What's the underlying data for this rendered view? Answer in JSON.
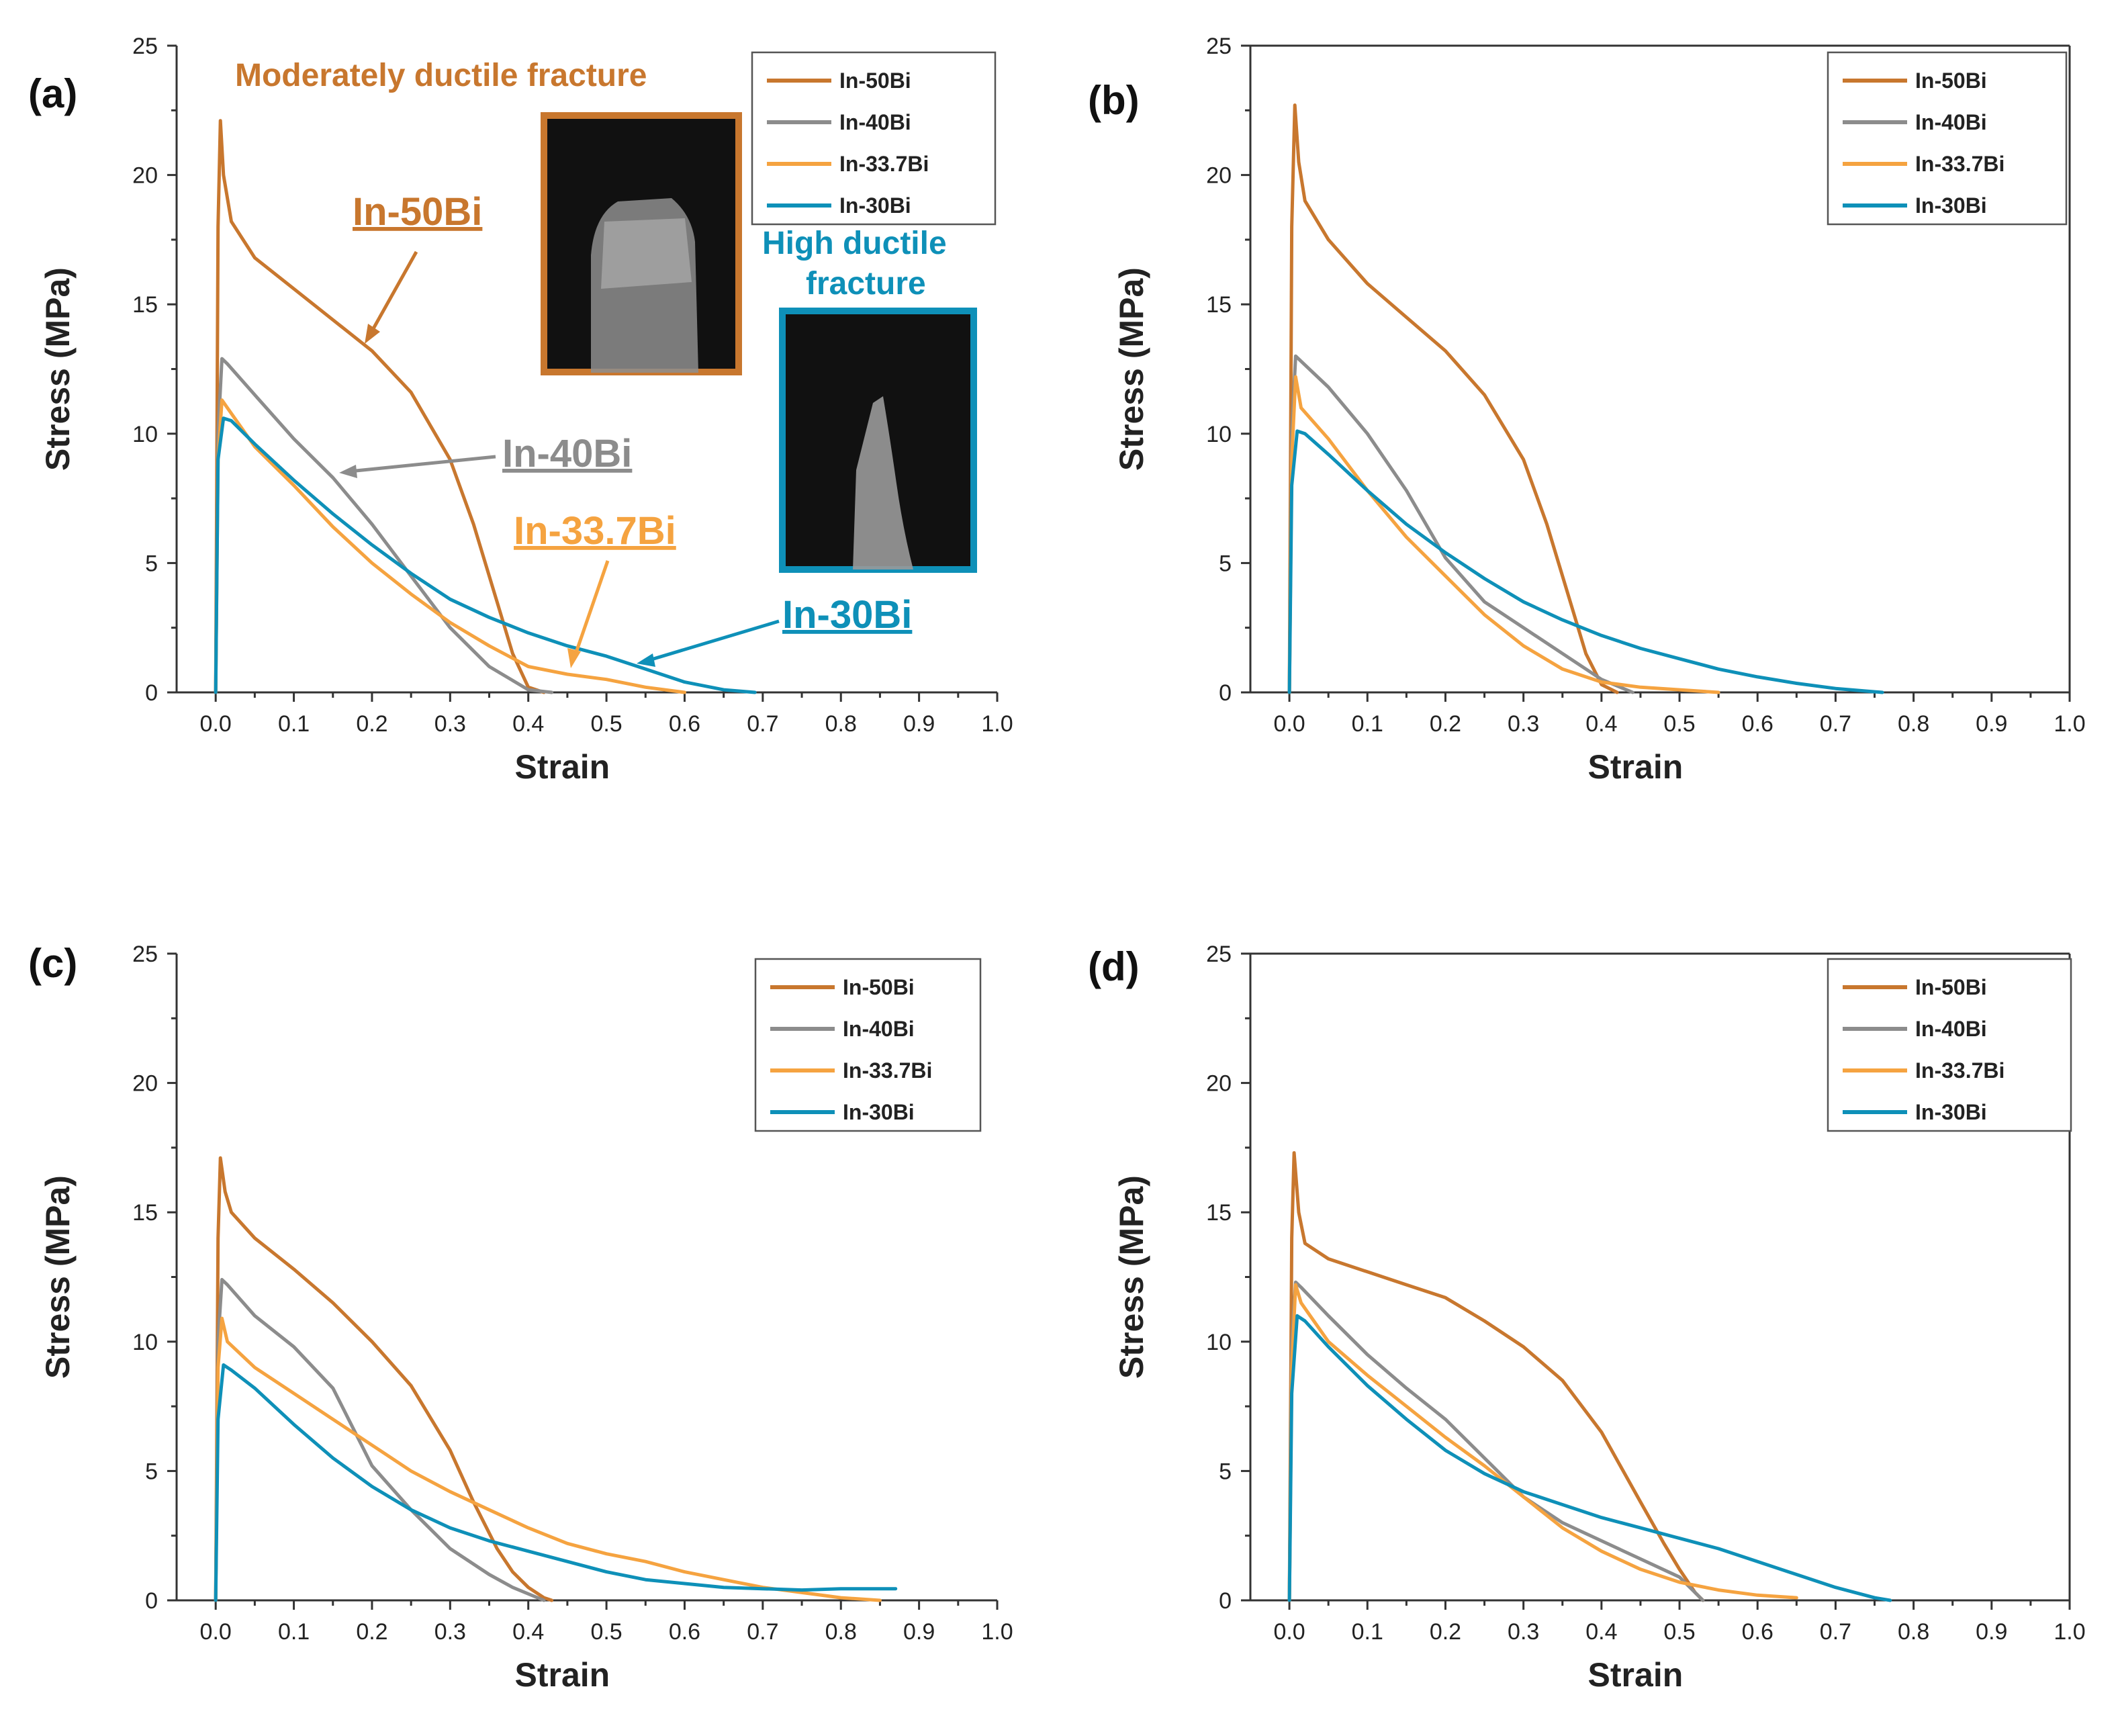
{
  "colors": {
    "In-50Bi": "#c8772e",
    "In-40Bi": "#8c8c8c",
    "In-33.7Bi": "#f5a340",
    "In-30Bi": "#0e90b8"
  },
  "chart_data": [
    {
      "type": "line",
      "panel": "(a)",
      "xlabel": "Strain",
      "ylabel": "Stress (MPa)",
      "xlim": [
        -0.05,
        1.0
      ],
      "ylim": [
        0,
        25
      ],
      "xticks": [
        "0.0",
        "0.1",
        "0.2",
        "0.3",
        "0.4",
        "0.5",
        "0.6",
        "0.7",
        "0.8",
        "0.9",
        "1.0"
      ],
      "yticks": [
        "0",
        "5",
        "10",
        "15",
        "20",
        "25"
      ],
      "legend": [
        "In-50Bi",
        "In-40Bi",
        "In-33.7Bi",
        "In-30Bi"
      ],
      "series": [
        {
          "name": "In-50Bi",
          "x": [
            0,
            0.003,
            0.006,
            0.01,
            0.02,
            0.05,
            0.1,
            0.15,
            0.2,
            0.25,
            0.3,
            0.33,
            0.36,
            0.38,
            0.4,
            0.42
          ],
          "y": [
            0,
            18,
            22.1,
            20,
            18.2,
            16.8,
            15.6,
            14.4,
            13.2,
            11.6,
            9,
            6.5,
            3.5,
            1.5,
            0.2,
            0
          ]
        },
        {
          "name": "In-40Bi",
          "x": [
            0,
            0.003,
            0.008,
            0.015,
            0.05,
            0.1,
            0.15,
            0.2,
            0.25,
            0.3,
            0.35,
            0.4,
            0.43
          ],
          "y": [
            0,
            10,
            12.9,
            12.7,
            11.5,
            9.8,
            8.3,
            6.5,
            4.5,
            2.5,
            1,
            0.1,
            0
          ]
        },
        {
          "name": "In-33.7Bi",
          "x": [
            0,
            0.003,
            0.008,
            0.015,
            0.05,
            0.1,
            0.15,
            0.2,
            0.25,
            0.3,
            0.35,
            0.4,
            0.45,
            0.5,
            0.55,
            0.6
          ],
          "y": [
            0,
            9,
            11.3,
            11,
            9.5,
            8,
            6.4,
            5,
            3.8,
            2.7,
            1.8,
            1,
            0.7,
            0.5,
            0.2,
            0
          ]
        },
        {
          "name": "In-30Bi",
          "x": [
            0,
            0.003,
            0.01,
            0.02,
            0.05,
            0.1,
            0.15,
            0.2,
            0.25,
            0.3,
            0.35,
            0.4,
            0.45,
            0.5,
            0.55,
            0.6,
            0.65,
            0.69
          ],
          "y": [
            0,
            9,
            10.6,
            10.5,
            9.6,
            8.2,
            6.9,
            5.7,
            4.6,
            3.6,
            2.9,
            2.3,
            1.8,
            1.4,
            0.9,
            0.4,
            0.1,
            0
          ]
        }
      ],
      "annotations": [
        {
          "text": "Moderately ductile fracture",
          "color": "#c8772e"
        },
        {
          "text": "High ductile fracture",
          "color": "#0e90b8"
        },
        {
          "text": "In-50Bi",
          "color": "#c8772e"
        },
        {
          "text": "In-40Bi",
          "color": "#8c8c8c"
        },
        {
          "text": "In-33.7Bi",
          "color": "#f5a340"
        },
        {
          "text": "In-30Bi",
          "color": "#0e90b8"
        }
      ]
    },
    {
      "type": "line",
      "panel": "(b)",
      "xlabel": "Strain",
      "ylabel": "Stress (MPa)",
      "xlim": [
        -0.05,
        1.0
      ],
      "ylim": [
        0,
        25
      ],
      "xticks": [
        "0.0",
        "0.1",
        "0.2",
        "0.3",
        "0.4",
        "0.5",
        "0.6",
        "0.7",
        "0.8",
        "0.9",
        "1.0"
      ],
      "yticks": [
        "0",
        "5",
        "10",
        "15",
        "20",
        "25"
      ],
      "legend": [
        "In-50Bi",
        "In-40Bi",
        "In-33.7Bi",
        "In-30Bi"
      ],
      "series": [
        {
          "name": "In-50Bi",
          "x": [
            0,
            0.003,
            0.007,
            0.012,
            0.02,
            0.05,
            0.1,
            0.15,
            0.2,
            0.25,
            0.3,
            0.33,
            0.36,
            0.38,
            0.4,
            0.42
          ],
          "y": [
            0,
            18,
            22.7,
            20.5,
            19,
            17.5,
            15.8,
            14.5,
            13.2,
            11.5,
            9,
            6.5,
            3.5,
            1.5,
            0.3,
            0
          ]
        },
        {
          "name": "In-40Bi",
          "x": [
            0,
            0.003,
            0.008,
            0.015,
            0.05,
            0.1,
            0.15,
            0.2,
            0.25,
            0.3,
            0.35,
            0.4,
            0.44
          ],
          "y": [
            0,
            10,
            13,
            12.8,
            11.8,
            10,
            7.8,
            5.2,
            3.5,
            2.5,
            1.5,
            0.5,
            0
          ]
        },
        {
          "name": "In-33.7Bi",
          "x": [
            0,
            0.003,
            0.008,
            0.015,
            0.05,
            0.1,
            0.15,
            0.2,
            0.25,
            0.3,
            0.35,
            0.4,
            0.45,
            0.5,
            0.55
          ],
          "y": [
            0,
            9,
            12.2,
            11,
            9.8,
            7.8,
            6,
            4.5,
            3,
            1.8,
            0.9,
            0.4,
            0.2,
            0.1,
            0
          ]
        },
        {
          "name": "In-30Bi",
          "x": [
            0,
            0.003,
            0.01,
            0.02,
            0.05,
            0.1,
            0.15,
            0.2,
            0.25,
            0.3,
            0.35,
            0.4,
            0.45,
            0.5,
            0.55,
            0.6,
            0.65,
            0.7,
            0.76
          ],
          "y": [
            0,
            8,
            10.1,
            10,
            9.2,
            7.8,
            6.5,
            5.4,
            4.4,
            3.5,
            2.8,
            2.2,
            1.7,
            1.3,
            0.9,
            0.6,
            0.35,
            0.15,
            0
          ]
        }
      ]
    },
    {
      "type": "line",
      "panel": "(c)",
      "xlabel": "Strain",
      "ylabel": "Stress (MPa)",
      "xlim": [
        -0.05,
        1.0
      ],
      "ylim": [
        0,
        25
      ],
      "xticks": [
        "0.0",
        "0.1",
        "0.2",
        "0.3",
        "0.4",
        "0.5",
        "0.6",
        "0.7",
        "0.8",
        "0.9",
        "1.0"
      ],
      "yticks": [
        "0",
        "5",
        "10",
        "15",
        "20",
        "25"
      ],
      "legend": [
        "In-50Bi",
        "In-40Bi",
        "In-33.7Bi",
        "In-30Bi"
      ],
      "series": [
        {
          "name": "In-50Bi",
          "x": [
            0,
            0.003,
            0.006,
            0.012,
            0.02,
            0.05,
            0.1,
            0.15,
            0.2,
            0.25,
            0.3,
            0.33,
            0.36,
            0.38,
            0.4,
            0.42,
            0.43
          ],
          "y": [
            0,
            14,
            17.1,
            15.8,
            15,
            14,
            12.8,
            11.5,
            10,
            8.3,
            5.8,
            3.8,
            2,
            1.1,
            0.5,
            0.1,
            0
          ]
        },
        {
          "name": "In-40Bi",
          "x": [
            0,
            0.003,
            0.008,
            0.015,
            0.05,
            0.1,
            0.15,
            0.2,
            0.25,
            0.3,
            0.35,
            0.38,
            0.42
          ],
          "y": [
            0,
            10,
            12.4,
            12.2,
            11,
            9.8,
            8.2,
            5.2,
            3.5,
            2,
            1,
            0.5,
            0
          ]
        },
        {
          "name": "In-33.7Bi",
          "x": [
            0,
            0.003,
            0.008,
            0.015,
            0.05,
            0.1,
            0.15,
            0.2,
            0.25,
            0.3,
            0.35,
            0.4,
            0.45,
            0.5,
            0.55,
            0.6,
            0.65,
            0.7,
            0.75,
            0.8,
            0.85
          ],
          "y": [
            0,
            9,
            10.9,
            10,
            9,
            8,
            7,
            6,
            5,
            4.2,
            3.5,
            2.8,
            2.2,
            1.8,
            1.5,
            1.1,
            0.8,
            0.5,
            0.3,
            0.1,
            0
          ]
        },
        {
          "name": "In-30Bi",
          "x": [
            0,
            0.003,
            0.01,
            0.02,
            0.05,
            0.1,
            0.15,
            0.2,
            0.25,
            0.3,
            0.35,
            0.4,
            0.45,
            0.5,
            0.55,
            0.6,
            0.65,
            0.7,
            0.75,
            0.8,
            0.85,
            0.87
          ],
          "y": [
            0,
            7,
            9.1,
            8.9,
            8.2,
            6.8,
            5.5,
            4.4,
            3.5,
            2.8,
            2.3,
            1.9,
            1.5,
            1.1,
            0.8,
            0.65,
            0.5,
            0.45,
            0.4,
            0.45,
            0.45,
            0.45
          ]
        }
      ]
    },
    {
      "type": "line",
      "panel": "(d)",
      "xlabel": "Strain",
      "ylabel": "Stress (MPa)",
      "xlim": [
        -0.05,
        1.0
      ],
      "ylim": [
        0,
        25
      ],
      "xticks": [
        "0.0",
        "0.1",
        "0.2",
        "0.3",
        "0.4",
        "0.5",
        "0.6",
        "0.7",
        "0.8",
        "0.9",
        "1.0"
      ],
      "yticks": [
        "0",
        "5",
        "10",
        "15",
        "20",
        "25"
      ],
      "legend": [
        "In-50Bi",
        "In-40Bi",
        "In-33.7Bi",
        "In-30Bi"
      ],
      "series": [
        {
          "name": "In-50Bi",
          "x": [
            0,
            0.003,
            0.006,
            0.012,
            0.02,
            0.05,
            0.1,
            0.15,
            0.2,
            0.25,
            0.3,
            0.35,
            0.4,
            0.45,
            0.48,
            0.5,
            0.52,
            0.53
          ],
          "y": [
            0,
            14,
            17.3,
            15,
            13.8,
            13.2,
            12.7,
            12.2,
            11.7,
            10.8,
            9.8,
            8.5,
            6.5,
            3.8,
            2.2,
            1.2,
            0.3,
            0
          ]
        },
        {
          "name": "In-40Bi",
          "x": [
            0,
            0.003,
            0.008,
            0.015,
            0.05,
            0.1,
            0.15,
            0.2,
            0.25,
            0.3,
            0.35,
            0.4,
            0.45,
            0.5,
            0.53
          ],
          "y": [
            0,
            10,
            12.3,
            12.1,
            11,
            9.5,
            8.2,
            7,
            5.5,
            4,
            3,
            2.3,
            1.6,
            0.9,
            0
          ]
        },
        {
          "name": "In-33.7Bi",
          "x": [
            0,
            0.003,
            0.008,
            0.015,
            0.05,
            0.1,
            0.15,
            0.2,
            0.25,
            0.3,
            0.35,
            0.4,
            0.45,
            0.5,
            0.55,
            0.6,
            0.65
          ],
          "y": [
            0,
            9,
            12.2,
            11.5,
            10,
            8.7,
            7.5,
            6.3,
            5.2,
            4,
            2.8,
            1.9,
            1.2,
            0.7,
            0.4,
            0.2,
            0.1
          ]
        },
        {
          "name": "In-30Bi",
          "x": [
            0,
            0.003,
            0.01,
            0.02,
            0.05,
            0.1,
            0.15,
            0.2,
            0.25,
            0.3,
            0.35,
            0.4,
            0.45,
            0.5,
            0.55,
            0.6,
            0.65,
            0.7,
            0.75,
            0.77
          ],
          "y": [
            0,
            8,
            11,
            10.8,
            9.8,
            8.3,
            7,
            5.8,
            4.9,
            4.2,
            3.7,
            3.2,
            2.8,
            2.4,
            2,
            1.5,
            1,
            0.5,
            0.1,
            0
          ]
        }
      ]
    }
  ]
}
